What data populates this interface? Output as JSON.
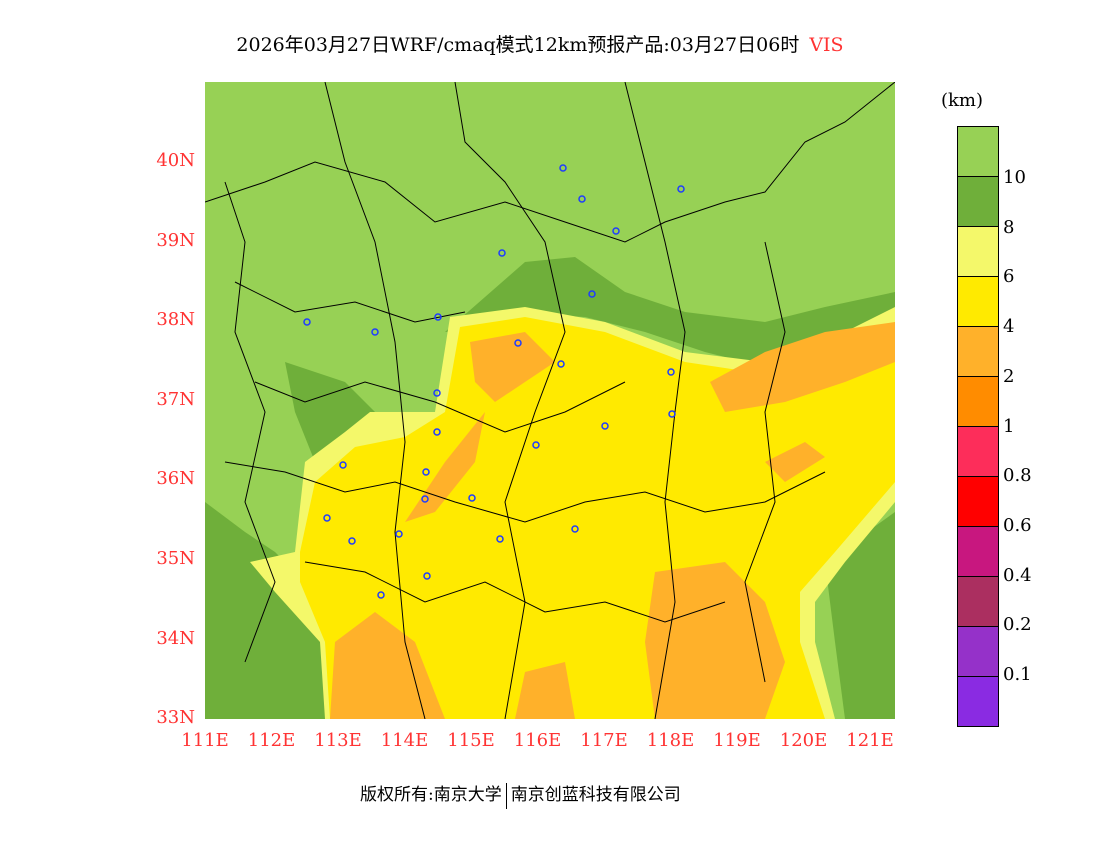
{
  "title": {
    "main": "2026年03月27日WRF/cmaq模式12km预报产品:03月27日06时",
    "variable": "VIS"
  },
  "axes": {
    "lat_labels": [
      "40N",
      "39N",
      "38N",
      "37N",
      "36N",
      "35N",
      "34N",
      "33N"
    ],
    "lon_labels": [
      "111E",
      "112E",
      "113E",
      "114E",
      "115E",
      "116E",
      "117E",
      "118E",
      "119E",
      "120E",
      "121E"
    ]
  },
  "legend": {
    "unit": "(km)",
    "colors": [
      "#97d155",
      "#6faf3a",
      "#f4f86a",
      "#ffea00",
      "#ffb12a",
      "#ff8c00",
      "#fd2d5a",
      "#ff0000",
      "#c8177f",
      "#ab2f60",
      "#9531c9",
      "#8a2be2"
    ],
    "labels": [
      "10",
      "8",
      "6",
      "4",
      "2",
      "1",
      "0.8",
      "0.6",
      "0.4",
      "0.2",
      "0.1"
    ]
  },
  "footer": {
    "left": "版权所有:南京大学",
    "right": "南京创蓝科技有限公司"
  }
}
